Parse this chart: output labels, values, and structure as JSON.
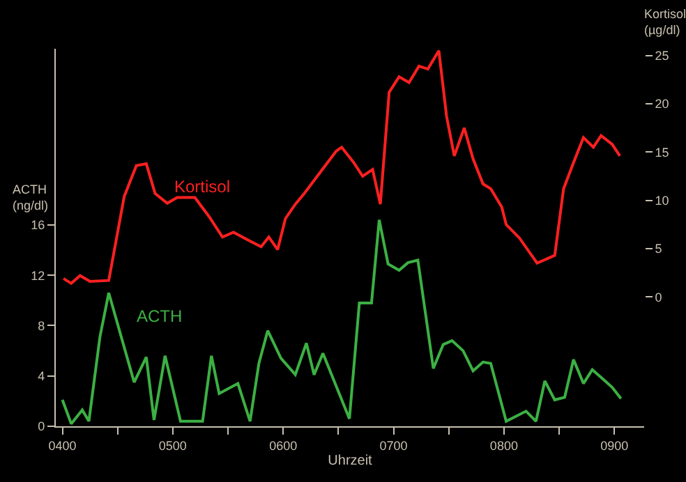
{
  "chart_data": {
    "type": "line",
    "xlabel": "Uhrzeit",
    "ylabel": "ACTH\n(ng/dl)",
    "y2label": "Kortisol\n(µg/dl)",
    "xlim": [
      394,
      927
    ],
    "xticks": [
      {
        "value": 400,
        "label": "0400"
      },
      {
        "value": 450,
        "label": null
      },
      {
        "value": 500,
        "label": "0500"
      },
      {
        "value": 550,
        "label": null
      },
      {
        "value": 600,
        "label": "0600"
      },
      {
        "value": 650,
        "label": null
      },
      {
        "value": 700,
        "label": "0700"
      },
      {
        "value": 750,
        "label": null
      },
      {
        "value": 800,
        "label": "0800"
      },
      {
        "value": 850,
        "label": null
      },
      {
        "value": 900,
        "label": "0900"
      }
    ],
    "ylim": [
      0,
      30
    ],
    "yticks": [
      0,
      4,
      8,
      12,
      16
    ],
    "y2lim": [
      -13.4,
      25.7
    ],
    "y2ticks": [
      0,
      5,
      10,
      15,
      20,
      25
    ],
    "grid": false,
    "legend": false,
    "marker": "none",
    "line_style": "solid",
    "series": [
      {
        "name": "ACTH",
        "color": "#3cb043",
        "x": [
          400,
          408,
          418,
          424,
          434,
          442,
          465,
          476,
          483,
          493,
          507,
          527,
          535,
          542,
          559,
          570,
          578,
          586,
          598,
          611,
          621,
          628,
          636,
          660,
          669,
          680,
          687,
          695,
          705,
          713,
          722,
          736,
          745,
          753,
          763,
          772,
          781,
          788,
          802,
          820,
          829,
          837,
          846,
          855,
          863,
          872,
          880,
          889,
          898,
          906
        ],
        "values": [
          2.1,
          0.2,
          1.3,
          0.4,
          7.1,
          10.6,
          3.5,
          5.5,
          0.5,
          5.6,
          0.4,
          0.4,
          5.6,
          2.6,
          3.4,
          0.4,
          5.0,
          7.6,
          5.4,
          4.1,
          6.6,
          4.1,
          5.8,
          0.6,
          9.8,
          9.8,
          16.4,
          12.9,
          12.4,
          13.0,
          13.2,
          4.6,
          6.5,
          6.8,
          6.0,
          4.4,
          5.1,
          5.0,
          0.4,
          1.2,
          0.4,
          3.6,
          2.1,
          2.3,
          5.3,
          3.4,
          4.5,
          3.8,
          3.1,
          2.2
        ]
      },
      {
        "name": "Kortisol",
        "color": "#ff2020",
        "axis": "y2",
        "x": [
          401,
          408,
          416,
          425,
          442,
          456,
          467,
          476,
          484,
          495,
          504,
          520,
          533,
          545,
          555,
          568,
          580,
          587,
          595,
          602,
          611,
          619,
          648,
          653,
          664,
          672,
          681,
          688,
          696,
          705,
          714,
          723,
          731,
          741,
          748,
          755,
          764,
          772,
          781,
          788,
          798,
          802,
          814,
          830,
          846,
          854,
          863,
          872,
          881,
          888,
          898,
          905
        ],
        "values": [
          1.9,
          1.4,
          2.2,
          1.6,
          1.7,
          10.4,
          13.6,
          13.8,
          10.7,
          9.7,
          10.3,
          10.3,
          8.3,
          6.2,
          6.7,
          5.9,
          5.2,
          6.2,
          4.9,
          8.1,
          9.6,
          10.7,
          15.1,
          15.5,
          13.9,
          12.5,
          13.2,
          9.6,
          21.2,
          22.8,
          22.2,
          23.9,
          23.6,
          25.5,
          18.7,
          14.6,
          17.5,
          14.3,
          11.7,
          11.2,
          9.3,
          7.5,
          6.1,
          3.5,
          4.3,
          11.2,
          13.9,
          16.5,
          15.5,
          16.7,
          15.8,
          14.6
        ]
      }
    ]
  }
}
